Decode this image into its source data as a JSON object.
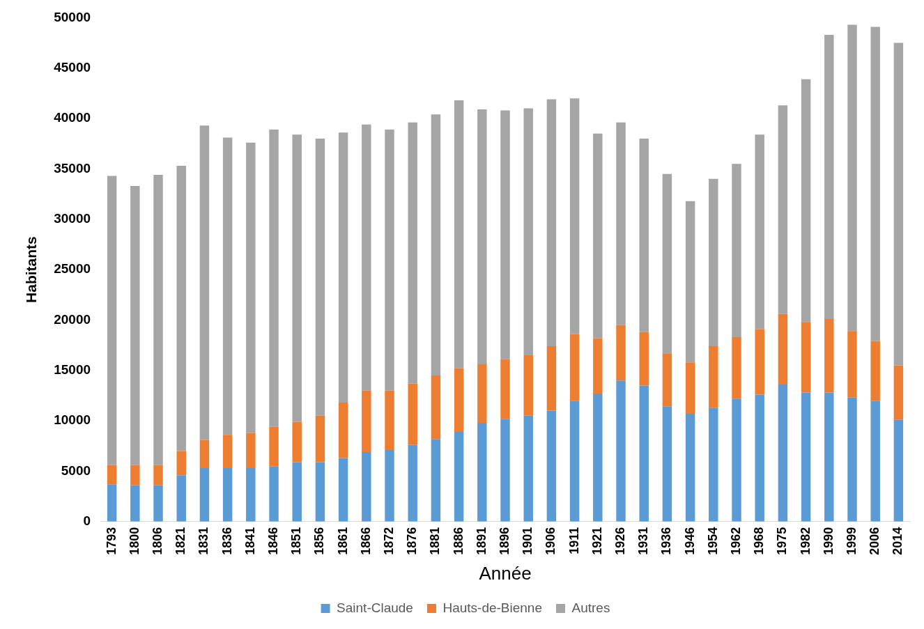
{
  "chart_data": {
    "type": "bar",
    "stacked": true,
    "xlabel": "Année",
    "ylabel": "Habitants",
    "categories": [
      "1793",
      "1800",
      "1806",
      "1821",
      "1831",
      "1836",
      "1841",
      "1846",
      "1851",
      "1856",
      "1861",
      "1866",
      "1872",
      "1876",
      "1881",
      "1886",
      "1891",
      "1896",
      "1901",
      "1906",
      "1911",
      "1921",
      "1926",
      "1931",
      "1936",
      "1946",
      "1954",
      "1962",
      "1968",
      "1975",
      "1982",
      "1990",
      "1999",
      "2006",
      "2014"
    ],
    "series": [
      {
        "name": "Saint-Claude",
        "color": "#5b9bd5",
        "values": [
          3700,
          3600,
          3600,
          4600,
          5300,
          5300,
          5300,
          5500,
          5900,
          5900,
          6300,
          6900,
          7100,
          7600,
          8200,
          8900,
          9800,
          10200,
          10500,
          11000,
          12000,
          12700,
          14000,
          13500,
          11400,
          10700,
          11300,
          12200,
          12600,
          13600,
          12800,
          12800,
          12300,
          12000,
          10100
        ]
      },
      {
        "name": "Hauts-de-Bienne",
        "color": "#ed7d31",
        "values": [
          1900,
          2000,
          2000,
          2400,
          2800,
          3300,
          3500,
          3900,
          4000,
          4600,
          5500,
          6100,
          5900,
          6100,
          6300,
          6300,
          5800,
          5900,
          6000,
          6400,
          6600,
          5500,
          5500,
          5300,
          5300,
          5100,
          6100,
          6100,
          6500,
          7000,
          7000,
          7300,
          6600,
          5900,
          5400
        ]
      },
      {
        "name": "Autres",
        "color": "#a5a5a5",
        "values": [
          28700,
          27700,
          28800,
          28300,
          31200,
          29500,
          28800,
          29500,
          28500,
          27500,
          26800,
          26400,
          25900,
          25900,
          25900,
          26600,
          25300,
          24700,
          24500,
          24500,
          23400,
          20300,
          20100,
          19200,
          17800,
          16000,
          16600,
          17200,
          19300,
          20700,
          24100,
          28200,
          30400,
          31200,
          32000
        ]
      }
    ],
    "ylim": [
      0,
      50000
    ],
    "yticks": [
      0,
      5000,
      10000,
      15000,
      20000,
      25000,
      30000,
      35000,
      40000,
      45000,
      50000
    ],
    "grid": false,
    "legend": "bottom"
  }
}
